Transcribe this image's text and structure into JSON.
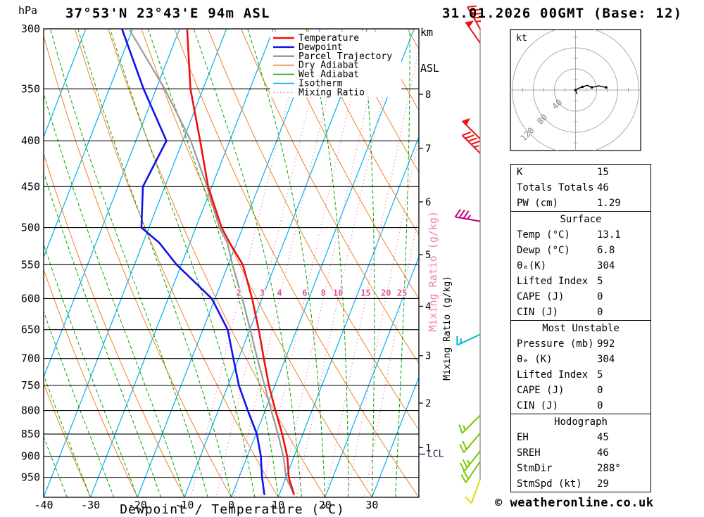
{
  "header": {
    "pressure_unit": "hPa",
    "station_title": "37°53'N 23°43'E 94m ASL",
    "km_label": "km",
    "asl_label": "ASL",
    "datetime_title": "31.01.2026 00GMT (Base: 12)"
  },
  "axes": {
    "pressure_ticks": [
      300,
      350,
      400,
      450,
      500,
      550,
      600,
      650,
      700,
      750,
      800,
      850,
      900,
      950
    ],
    "temp_ticks": [
      -40,
      -30,
      -20,
      -10,
      0,
      10,
      20,
      30
    ],
    "x_axis_title": "Dewpoint / Temperature (°C)",
    "km_ticks": [
      {
        "km": 1,
        "p": 880
      },
      {
        "km": 2,
        "p": 785
      },
      {
        "km": 3,
        "p": 695
      },
      {
        "km": 4,
        "p": 612
      },
      {
        "km": 5,
        "p": 536
      },
      {
        "km": 6,
        "p": 468
      },
      {
        "km": 7,
        "p": 408
      },
      {
        "km": 8,
        "p": 355
      }
    ],
    "mixing_ratio_label": "Mixing Ratio (g/kg)",
    "lcl_label": "LCL",
    "lcl_pressure": 895
  },
  "legend": {
    "items": [
      {
        "label": "Temperature",
        "key": "temperature"
      },
      {
        "label": "Dewpoint",
        "key": "dewpoint"
      },
      {
        "label": "Parcel Trajectory",
        "key": "parcel"
      },
      {
        "label": "Dry Adiabat",
        "key": "dry_adiabat"
      },
      {
        "label": "Wet Adiabat",
        "key": "wet_adiabat"
      },
      {
        "label": "Isotherm",
        "key": "isotherm"
      },
      {
        "label": "Mixing Ratio",
        "key": "mixing_ratio"
      }
    ]
  },
  "colors": {
    "temperature": "#ee1111",
    "dewpoint": "#1111ee",
    "parcel": "#9a9a9a",
    "dry_adiabat": "#f08228",
    "wet_adiabat": "#00a800",
    "isotherm": "#00b0f0",
    "mixing_ratio": "#f2a0c8",
    "mixing_ratio_label": "#e05090",
    "grid": "#000000",
    "hodo_ring": "#aaaaaa",
    "hodo_label": "#888888"
  },
  "chart_data": {
    "type": "skewt_log_p_sounding",
    "pressure_range_hpa": [
      300,
      1000
    ],
    "temperature_axis_range_c": [
      -40,
      40
    ],
    "isotherm_step_c": 10,
    "dry_adiabat_theta_c": [
      -40,
      -30,
      -20,
      -10,
      0,
      10,
      20,
      30,
      40,
      50,
      60,
      70,
      80,
      90,
      100,
      110,
      120
    ],
    "wet_adiabat_thetaw_c": [
      -40,
      -35,
      -30,
      -25,
      -20,
      -15,
      -10,
      -5,
      0,
      5,
      10,
      15,
      20,
      25,
      30,
      35
    ],
    "mixing_ratio_lines_gkg": [
      2,
      3,
      4,
      6,
      8,
      10,
      15,
      20,
      25
    ],
    "mixing_ratio_label_pressure": 600,
    "sounding_levels": [
      {
        "p": 992,
        "t": 13.1,
        "td": 6.8,
        "parcel": 13.1
      },
      {
        "p": 950,
        "t": 10.6,
        "td": 4.9,
        "parcel": 10.0
      },
      {
        "p": 925,
        "t": 9.6,
        "td": 3.9,
        "parcel": 8.9
      },
      {
        "p": 900,
        "t": 8.5,
        "td": 2.9,
        "parcel": 7.7
      },
      {
        "p": 850,
        "t": 5.6,
        "td": 0.2,
        "parcel": 4.7
      },
      {
        "p": 800,
        "t": 2.2,
        "td": -3.7,
        "parcel": 1.3
      },
      {
        "p": 750,
        "t": -1.3,
        "td": -7.7,
        "parcel": -2.2
      },
      {
        "p": 700,
        "t": -4.6,
        "td": -11.1,
        "parcel": -6.0
      },
      {
        "p": 650,
        "t": -8.1,
        "td": -14.7,
        "parcel": -9.9
      },
      {
        "p": 600,
        "t": -12.1,
        "td": -20.7,
        "parcel": -14.2
      },
      {
        "p": 550,
        "t": -16.9,
        "td": -31.0,
        "parcel": -19.1
      },
      {
        "p": 520,
        "t": -21.5,
        "td": -36.5,
        "parcel": -22.0
      },
      {
        "p": 500,
        "t": -24.5,
        "td": -41.6,
        "parcel": -25.0
      },
      {
        "p": 450,
        "t": -30.8,
        "td": -44.7,
        "parcel": -31.0
      },
      {
        "p": 400,
        "t": -36.3,
        "td": -43.5,
        "parcel": -38.3
      },
      {
        "p": 350,
        "t": -42.7,
        "td": -52.7,
        "parcel": -48.2
      },
      {
        "p": 300,
        "t": -48.4,
        "td": -62.3,
        "parcel": -60.8
      }
    ],
    "wind_barbs": [
      {
        "p": 300,
        "dir": 330,
        "spd": 45,
        "color": "#ee1111"
      },
      {
        "p": 311,
        "dir": 325,
        "spd": 50,
        "color": "#ee1111"
      },
      {
        "p": 398,
        "dir": 315,
        "spd": 50,
        "color": "#ee1111"
      },
      {
        "p": 413,
        "dir": 315,
        "spd": 45,
        "color": "#ee1111"
      },
      {
        "p": 492,
        "dir": 280,
        "spd": 35,
        "color": "#c4007a"
      },
      {
        "p": 658,
        "dir": 245,
        "spd": 15,
        "color": "#00b8d4"
      },
      {
        "p": 810,
        "dir": 225,
        "spd": 15,
        "color": "#7ac800"
      },
      {
        "p": 848,
        "dir": 220,
        "spd": 20,
        "color": "#7ac800"
      },
      {
        "p": 888,
        "dir": 218,
        "spd": 25,
        "color": "#7ac800"
      },
      {
        "p": 912,
        "dir": 214,
        "spd": 20,
        "color": "#7ac800"
      },
      {
        "p": 955,
        "dir": 200,
        "spd": 10,
        "color": "#dcdc00"
      }
    ],
    "hodograph": {
      "unit": "kt",
      "ring_interval_kt": 40,
      "ring_labels_kt": [
        40,
        80,
        120
      ],
      "trace_uv_kt": [
        [
          0,
          0
        ],
        [
          5,
          3
        ],
        [
          13,
          6
        ],
        [
          22,
          9
        ],
        [
          31,
          5
        ],
        [
          44,
          8
        ],
        [
          58,
          5
        ]
      ],
      "stub_uv_kt": [
        [
          0,
          0
        ],
        [
          3,
          -8
        ]
      ]
    }
  },
  "tables": [
    {
      "header": null,
      "rows": [
        [
          "K",
          "15"
        ],
        [
          "Totals Totals",
          "46"
        ],
        [
          "PW (cm)",
          "1.29"
        ]
      ]
    },
    {
      "header": "Surface",
      "rows": [
        [
          "Temp (°C)",
          "13.1"
        ],
        [
          "Dewp (°C)",
          "6.8"
        ],
        [
          "θₑ(K)",
          "304"
        ],
        [
          "Lifted Index",
          "5"
        ],
        [
          "CAPE (J)",
          "0"
        ],
        [
          "CIN (J)",
          "0"
        ]
      ]
    },
    {
      "header": "Most Unstable",
      "rows": [
        [
          "Pressure (mb)",
          "992"
        ],
        [
          "θₑ (K)",
          "304"
        ],
        [
          "Lifted Index",
          "5"
        ],
        [
          "CAPE (J)",
          "0"
        ],
        [
          "CIN (J)",
          "0"
        ]
      ]
    },
    {
      "header": "Hodograph",
      "rows": [
        [
          "EH",
          "45"
        ],
        [
          "SREH",
          "46"
        ],
        [
          "StmDir",
          "288°"
        ],
        [
          "StmSpd (kt)",
          "29"
        ]
      ]
    }
  ],
  "footer": {
    "copyright": "© weatheronline.co.uk"
  }
}
